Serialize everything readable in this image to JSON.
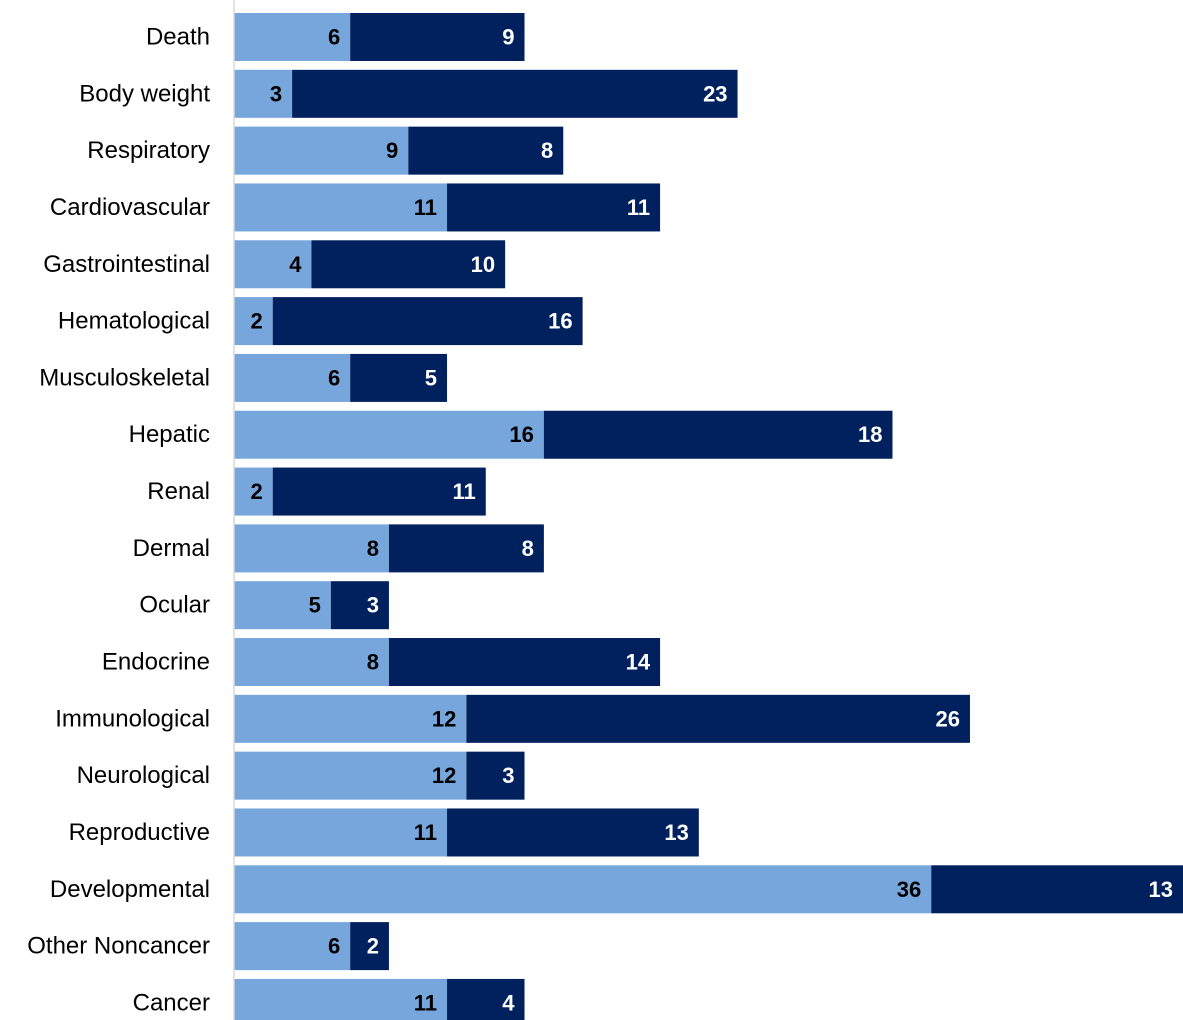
{
  "chart_data": {
    "type": "bar",
    "orientation": "horizontal",
    "stacked": true,
    "categories": [
      "Death",
      "Body weight",
      "Respiratory",
      "Cardiovascular",
      "Gastrointestinal",
      "Hematological",
      "Musculoskeletal",
      "Hepatic",
      "Renal",
      "Dermal",
      "Ocular",
      "Endocrine",
      "Immunological",
      "Neurological",
      "Reproductive",
      "Developmental",
      "Other Noncancer",
      "Cancer"
    ],
    "series": [
      {
        "color": "#77a6dc",
        "label_color": "#000000",
        "values": [
          6,
          3,
          9,
          11,
          4,
          2,
          6,
          16,
          2,
          8,
          5,
          8,
          12,
          12,
          11,
          36,
          6,
          11
        ]
      },
      {
        "color": "#00205e",
        "label_color": "#ffffff",
        "values": [
          9,
          23,
          8,
          11,
          10,
          16,
          5,
          18,
          11,
          8,
          3,
          14,
          26,
          3,
          13,
          13,
          2,
          4
        ]
      }
    ],
    "xlim": [
      0,
      49
    ],
    "grid": false,
    "legend": "none"
  }
}
